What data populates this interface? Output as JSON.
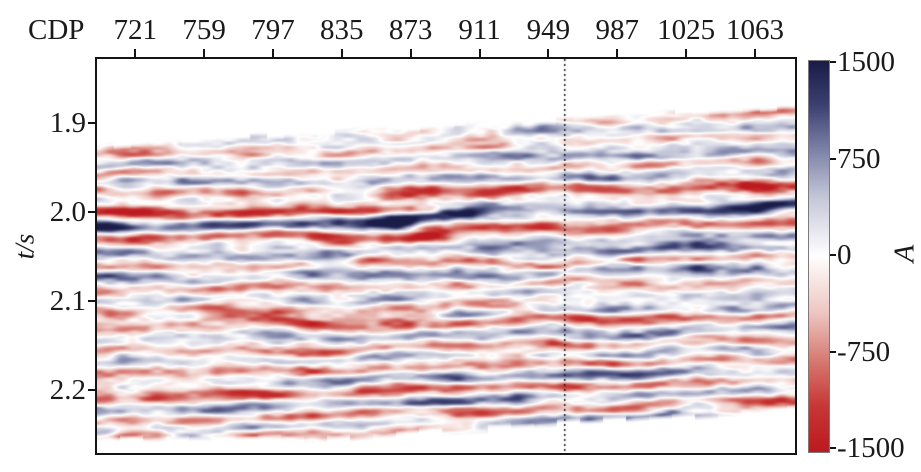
{
  "figure": {
    "background": "#ffffff",
    "frame_color": "#141414",
    "text_color": "#1a1a1a"
  },
  "chart_data": {
    "type": "heatmap",
    "subtype": "seismic-section",
    "title": "",
    "xlabel": "CDP",
    "ylabel": "t/s",
    "x_ticks": [
      721,
      759,
      797,
      835,
      873,
      911,
      949,
      987,
      1025,
      1063
    ],
    "x_range": [
      700,
      1085
    ],
    "y_ticks": [
      "1.9",
      "2.0",
      "2.1",
      "2.2"
    ],
    "y_range": [
      1.828,
      2.271
    ],
    "grid": false,
    "legend": "none",
    "annotation_vline": {
      "cdp": 958,
      "style": "dotted",
      "color": "#1a1a1a"
    },
    "colorbar": {
      "label": "A",
      "tick_labels": [
        "1500",
        "750",
        "0",
        "-750",
        "-1500"
      ],
      "ticks": [
        1500,
        750,
        0,
        -750,
        -1500
      ],
      "vmax": 1500,
      "vmin": -1500,
      "positive_core": "#1b1d49",
      "zero": "#ffffff",
      "negative_core": "#bd1b21"
    },
    "colormap": {
      "positive_stops": [
        [
          0,
          "#ffffff"
        ],
        [
          0.3,
          "#c5c7d9"
        ],
        [
          0.55,
          "#7c81a7"
        ],
        [
          0.78,
          "#3c4070"
        ],
        [
          1,
          "#1b1d49"
        ]
      ],
      "negative_stops": [
        [
          0,
          "#ffffff"
        ],
        [
          0.3,
          "#edc5c0"
        ],
        [
          0.55,
          "#d67870"
        ],
        [
          0.78,
          "#c73736"
        ],
        [
          1,
          "#bd1b21"
        ]
      ]
    },
    "data_extent": {
      "t_top_left": 1.922,
      "t_top_right": 1.879,
      "t_bottom_left": 2.257,
      "t_bottom_right": 2.224
    },
    "reflectors": [
      {
        "t": 1.889,
        "amp": -0.3,
        "x0": 0.8,
        "x1": 1.0,
        "sig": 3.0,
        "tilt": -8
      },
      {
        "t": 1.897,
        "amp": -0.34,
        "x0": 0.62,
        "x1": 1.0,
        "sig": 3.0,
        "tilt": -8
      },
      {
        "t": 1.908,
        "amp": 0.32,
        "x0": 0.58,
        "x1": 1.0,
        "sig": 3.5,
        "tilt": -8
      },
      {
        "t": 1.919,
        "amp": -0.36,
        "x0": 0.52,
        "x1": 1.0,
        "sig": 3.0,
        "tilt": -9
      },
      {
        "t": 1.929,
        "amp": -0.42,
        "x0": 0.0,
        "x1": 0.6,
        "sig": 3.5,
        "tilt": -12
      },
      {
        "t": 1.94,
        "amp": 0.4,
        "x0": 0.0,
        "x1": 1.0,
        "sig": 4.0,
        "tilt": -13
      },
      {
        "t": 1.951,
        "amp": -0.46,
        "x0": 0.0,
        "x1": 1.0,
        "sig": 3.5,
        "tilt": -13
      },
      {
        "t": 1.962,
        "amp": 0.52,
        "x0": 0.0,
        "x1": 1.0,
        "sig": 4.0,
        "tilt": -13
      },
      {
        "t": 1.973,
        "amp": -0.5,
        "x0": 0.0,
        "x1": 0.46,
        "sig": 3.5,
        "tilt": -6
      },
      {
        "t": 1.976,
        "amp": -0.85,
        "x0": 0.4,
        "x1": 1.0,
        "sig": 4.5,
        "tilt": -9
      },
      {
        "t": 1.998,
        "amp": -0.88,
        "x0": 0.0,
        "x1": 0.47,
        "sig": 4.5,
        "tilt": -5
      },
      {
        "t": 2.003,
        "amp": 0.95,
        "x0": 0.4,
        "x1": 1.0,
        "sig": 4.5,
        "tilt": -20
      },
      {
        "t": 2.012,
        "amp": 1.0,
        "x0": 0.0,
        "x1": 0.47,
        "sig": 5.0,
        "tilt": -5
      },
      {
        "t": 2.0195,
        "amp": -0.62,
        "x0": 0.45,
        "x1": 1.0,
        "sig": 4.0,
        "tilt": -14
      },
      {
        "t": 2.026,
        "amp": -0.8,
        "x0": 0.0,
        "x1": 0.52,
        "sig": 4.5,
        "tilt": -5
      },
      {
        "t": 2.034,
        "amp": 0.4,
        "x0": 0.5,
        "x1": 1.0,
        "sig": 4.0,
        "tilt": -16
      },
      {
        "t": 2.044,
        "amp": 0.46,
        "x0": 0.0,
        "x1": 1.0,
        "sig": 4.0,
        "tilt": -9
      },
      {
        "t": 2.0565,
        "amp": -0.5,
        "x0": 0.0,
        "x1": 1.0,
        "sig": 4.0,
        "tilt": -9
      },
      {
        "t": 2.0695,
        "amp": 0.55,
        "x0": 0.0,
        "x1": 1.0,
        "sig": 4.5,
        "tilt": -9
      },
      {
        "t": 2.082,
        "amp": -0.46,
        "x0": 0.0,
        "x1": 1.0,
        "sig": 4.0,
        "tilt": -9
      },
      {
        "t": 2.0945,
        "amp": 0.32,
        "x0": 0.0,
        "x1": 1.0,
        "sig": 4.0,
        "tilt": -9
      },
      {
        "t": 2.107,
        "amp": -0.56,
        "x0": 0.0,
        "x1": 0.62,
        "sig": 4.0,
        "tilt": -8
      },
      {
        "t": 2.1125,
        "amp": 0.52,
        "x0": 0.5,
        "x1": 1.0,
        "sig": 4.0,
        "tilt": -11
      },
      {
        "t": 2.1225,
        "amp": -0.7,
        "x0": 0.0,
        "x1": 1.0,
        "sig": 4.5,
        "tilt": -11
      },
      {
        "t": 2.137,
        "amp": 0.5,
        "x0": 0.0,
        "x1": 1.0,
        "sig": 4.5,
        "tilt": -11
      },
      {
        "t": 2.1505,
        "amp": -0.52,
        "x0": 0.0,
        "x1": 1.0,
        "sig": 4.0,
        "tilt": -13
      },
      {
        "t": 2.163,
        "amp": 0.36,
        "x0": 0.0,
        "x1": 1.0,
        "sig": 4.0,
        "tilt": -13
      },
      {
        "t": 2.173,
        "amp": -0.66,
        "x0": 0.0,
        "x1": 1.0,
        "sig": 4.5,
        "tilt": -15
      },
      {
        "t": 2.1865,
        "amp": 0.6,
        "x0": 0.25,
        "x1": 1.0,
        "sig": 4.5,
        "tilt": -17
      },
      {
        "t": 2.1985,
        "amp": -0.7,
        "x0": 0.0,
        "x1": 1.0,
        "sig": 4.5,
        "tilt": -19
      },
      {
        "t": 2.211,
        "amp": 0.55,
        "x0": 0.0,
        "x1": 1.0,
        "sig": 4.5,
        "tilt": -21
      },
      {
        "t": 2.2235,
        "amp": -0.6,
        "x0": 0.0,
        "x1": 1.0,
        "sig": 4.0,
        "tilt": -23
      },
      {
        "t": 2.2365,
        "amp": 0.46,
        "x0": 0.0,
        "x1": 0.9,
        "sig": 4.5,
        "tilt": -18
      },
      {
        "t": 2.2425,
        "amp": -0.42,
        "x0": 0.0,
        "x1": 0.55,
        "sig": 4.0,
        "tilt": -20
      }
    ]
  }
}
